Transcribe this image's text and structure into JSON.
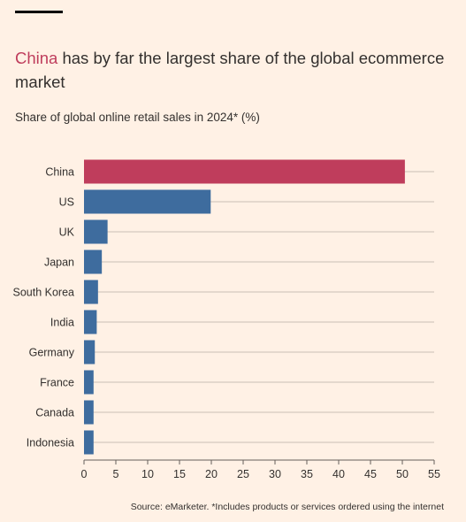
{
  "header": {
    "title_highlight": "China",
    "title_rest": " has by far the largest share of the global ecommerce market",
    "subtitle": "Share of global online retail sales in 2024* (%)"
  },
  "footer": {
    "source": "Source: eMarketer. *Includes products or services ordered using the internet"
  },
  "colors": {
    "highlight": "#bf3d5c",
    "bar": "#3e6c9e",
    "background": "#fff1e5",
    "grid": "#c9beb5"
  },
  "chart_data": {
    "type": "bar",
    "orientation": "horizontal",
    "title": "China has by far the largest share of the global ecommerce market",
    "subtitle": "Share of global online retail sales in 2024* (%)",
    "categories": [
      "China",
      "US",
      "UK",
      "Japan",
      "South Korea",
      "India",
      "Germany",
      "France",
      "Canada",
      "Indonesia"
    ],
    "values": [
      50.4,
      19.9,
      3.7,
      2.8,
      2.2,
      2.0,
      1.7,
      1.5,
      1.5,
      1.5
    ],
    "highlight_category": "China",
    "xlim": [
      0,
      55
    ],
    "xticks": [
      0,
      5,
      10,
      15,
      20,
      25,
      30,
      35,
      40,
      45,
      50,
      55
    ],
    "grid": true
  }
}
